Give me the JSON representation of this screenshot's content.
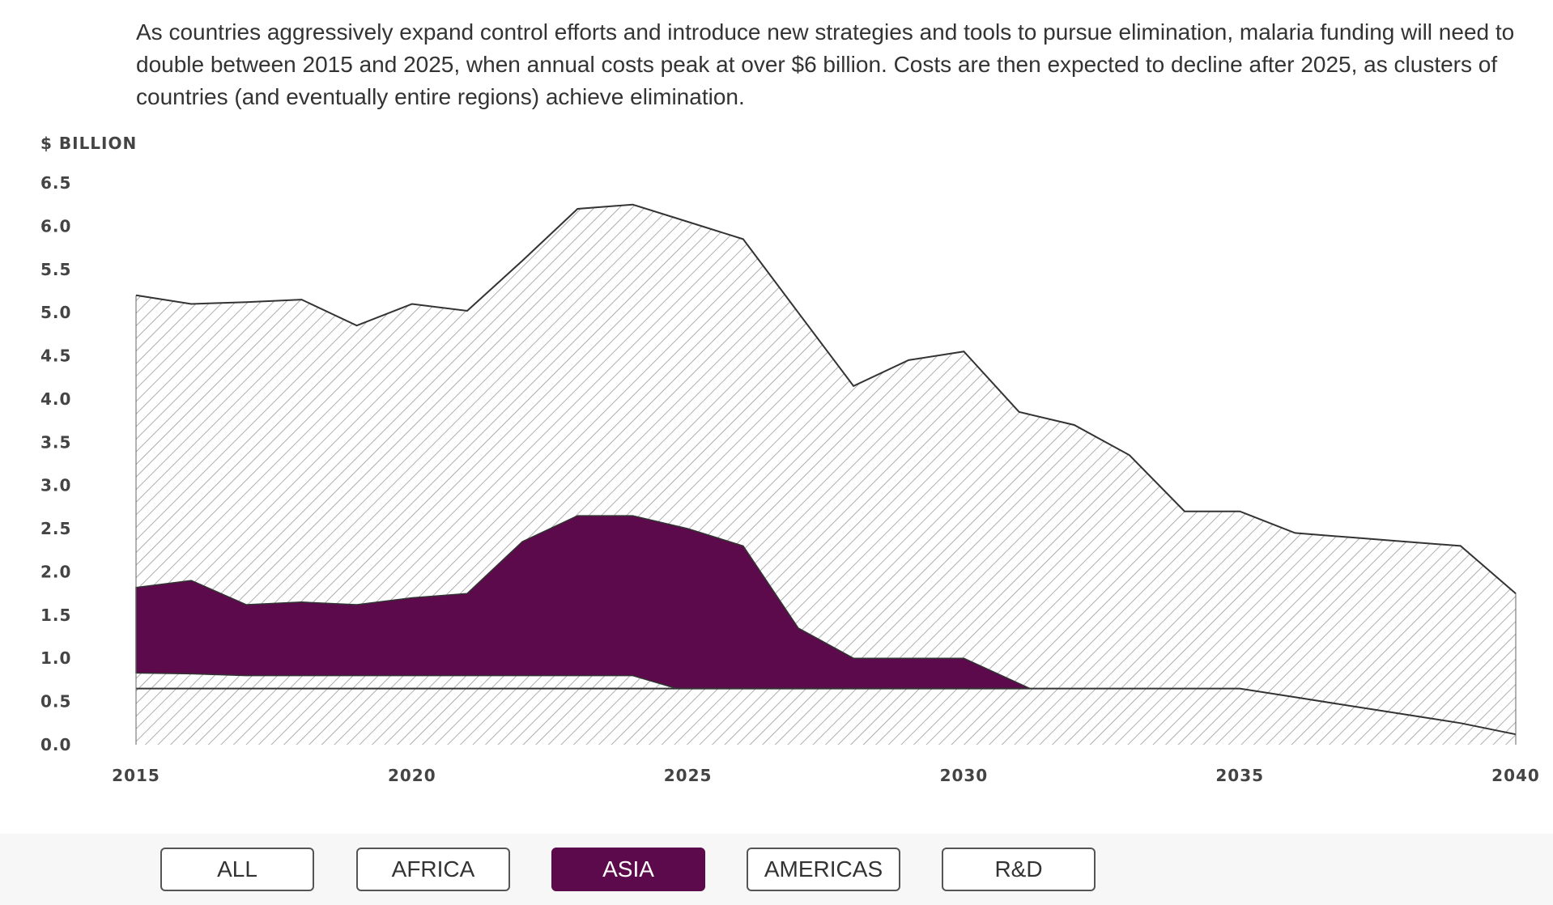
{
  "intro_text": "As countries aggressively expand control efforts and introduce new strategies and tools to pursue elimination, malaria funding will need to double between 2015 and 2025, when annual costs peak at over $6 billion. Costs are then expected to decline after 2025, as clusters of countries (and eventually entire regions) achieve elimination.",
  "filters": [
    {
      "label": "ALL",
      "active": false
    },
    {
      "label": "AFRICA",
      "active": false
    },
    {
      "label": "ASIA",
      "active": true
    },
    {
      "label": "AMERICAS",
      "active": false
    },
    {
      "label": "R&D",
      "active": false
    }
  ],
  "colors": {
    "highlight": "#5c0a4c",
    "hatch": "#9a9a9a",
    "outline": "#333333"
  },
  "chart_data": {
    "type": "area",
    "ylabel": "$ BILLION",
    "ylim": [
      0,
      6.5
    ],
    "yticks": [
      "0.0",
      "0.5",
      "1.0",
      "1.5",
      "2.0",
      "2.5",
      "3.0",
      "3.5",
      "4.0",
      "4.5",
      "5.0",
      "5.5",
      "6.0",
      "6.5"
    ],
    "xlim": [
      2015,
      2040
    ],
    "xticks": [
      "2015",
      "2020",
      "2025",
      "2030",
      "2035",
      "2040"
    ],
    "highlighted_series": "ASIA",
    "total": {
      "x": [
        2015,
        2016,
        2017,
        2018,
        2019,
        2020,
        2021,
        2022,
        2023,
        2024,
        2025,
        2026,
        2027,
        2028,
        2029,
        2030,
        2031,
        2032,
        2033,
        2034,
        2035,
        2036,
        2037,
        2038,
        2039,
        2040
      ],
      "y": [
        5.2,
        5.1,
        5.12,
        5.15,
        4.85,
        5.1,
        5.02,
        5.6,
        6.2,
        6.25,
        6.05,
        5.85,
        5.0,
        4.15,
        4.45,
        4.55,
        3.85,
        3.7,
        3.35,
        2.7,
        2.7,
        2.45,
        2.4,
        2.35,
        2.3,
        1.75
      ]
    },
    "asia_upper": {
      "x": [
        2015,
        2016,
        2017,
        2018,
        2019,
        2020,
        2021,
        2022,
        2023,
        2024,
        2025,
        2026,
        2027,
        2028,
        2029,
        2030,
        2031.2
      ],
      "y": [
        1.82,
        1.9,
        1.62,
        1.65,
        1.62,
        1.7,
        1.75,
        2.35,
        2.65,
        2.65,
        2.5,
        2.3,
        1.35,
        1.0,
        1.0,
        1.0,
        0.65
      ]
    },
    "asia_lower": {
      "x": [
        2015,
        2016,
        2017,
        2018,
        2019,
        2020,
        2021,
        2022,
        2023,
        2024,
        2024.8,
        2025,
        2026,
        2027,
        2028,
        2029,
        2030,
        2031.2
      ],
      "y": [
        0.83,
        0.82,
        0.8,
        0.8,
        0.8,
        0.8,
        0.8,
        0.8,
        0.8,
        0.8,
        0.65,
        0.65,
        0.65,
        0.65,
        0.65,
        0.65,
        0.65,
        0.65
      ]
    },
    "baseline_band": {
      "x": [
        2015,
        2020,
        2025,
        2030,
        2035,
        2036,
        2037,
        2038,
        2039,
        2040
      ],
      "y": [
        0.65,
        0.65,
        0.65,
        0.65,
        0.65,
        0.55,
        0.45,
        0.35,
        0.25,
        0.12
      ]
    }
  }
}
